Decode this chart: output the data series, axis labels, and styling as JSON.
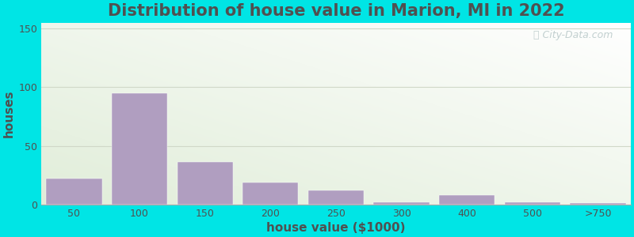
{
  "title": "Distribution of house value in Marion, MI in 2022",
  "xlabel": "house value ($1000)",
  "ylabel": "houses",
  "bar_values": [
    22,
    95,
    36,
    19,
    12,
    2,
    8,
    2,
    1
  ],
  "bar_color": "#b09ec0",
  "ylim": [
    0,
    155
  ],
  "yticks": [
    0,
    50,
    100,
    150
  ],
  "xtick_labels": [
    "50",
    "100",
    "150",
    "200",
    "250",
    "300",
    "400",
    "500",
    ">750"
  ],
  "background_outer": "#00e5e5",
  "grid_color": "#d0d8c8",
  "title_fontsize": 15,
  "axis_label_fontsize": 11,
  "tick_fontsize": 9,
  "watermark_text": "City-Data.com",
  "watermark_color": "#b8c8c8",
  "text_color": "#505050"
}
